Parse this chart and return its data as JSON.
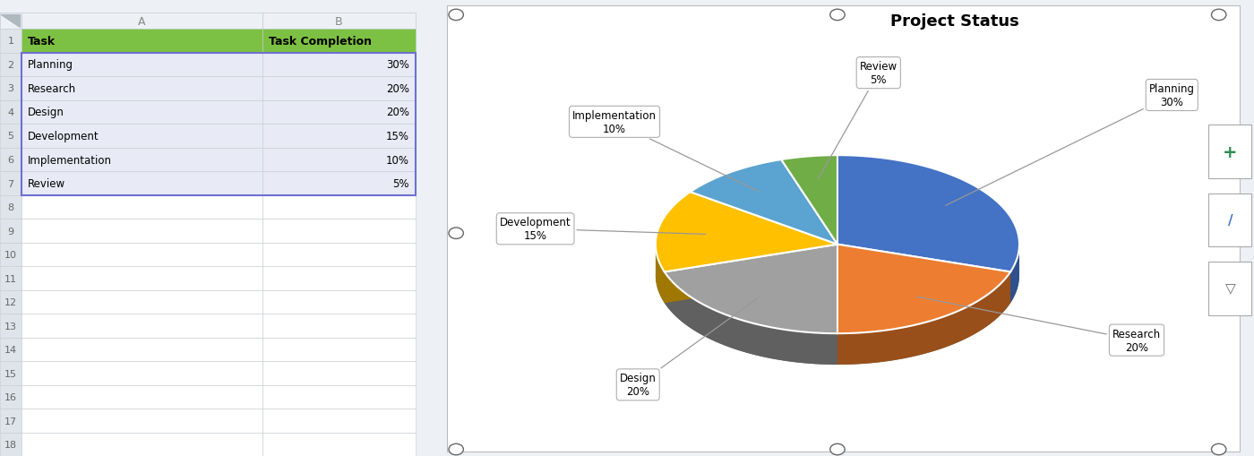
{
  "title": "Project Status",
  "labels": [
    "Planning",
    "Research",
    "Design",
    "Development",
    "Implementation",
    "Review"
  ],
  "values": [
    30,
    20,
    20,
    15,
    10,
    5
  ],
  "colors": [
    "#4472C4",
    "#ED7D31",
    "#A0A0A0",
    "#FFC000",
    "#5BA3D0",
    "#70AD47"
  ],
  "dark_colors": [
    "#2E508C",
    "#994F1A",
    "#606060",
    "#A07800",
    "#2E6890",
    "#407828"
  ],
  "header_bg": "#7DC144",
  "bg_color": "#EDF1F5",
  "row_bg": "#E8EBF5",
  "rn_bg": "#DEE4EA",
  "grid_color": "#C5CBCF",
  "col_header_bg": "#EDF1F5",
  "white": "#FFFFFF",
  "selection_color": "#7070D0",
  "row_data": [
    [
      "Planning",
      "30%"
    ],
    [
      "Research",
      "20%"
    ],
    [
      "Design",
      "20%"
    ],
    [
      "Development",
      "15%"
    ],
    [
      "Implementation",
      "10%"
    ],
    [
      "Review",
      "5%"
    ]
  ]
}
